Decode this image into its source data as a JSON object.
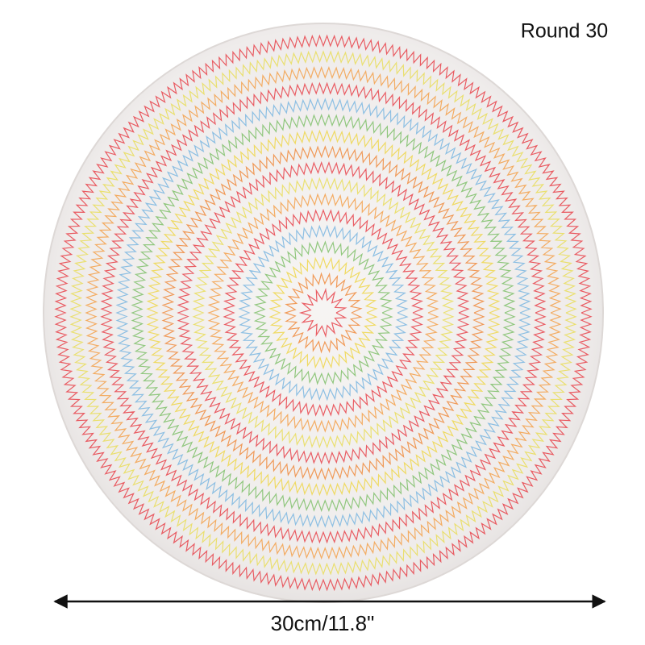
{
  "label": "Round 30",
  "dimension": "30cm/11.8\""
}
